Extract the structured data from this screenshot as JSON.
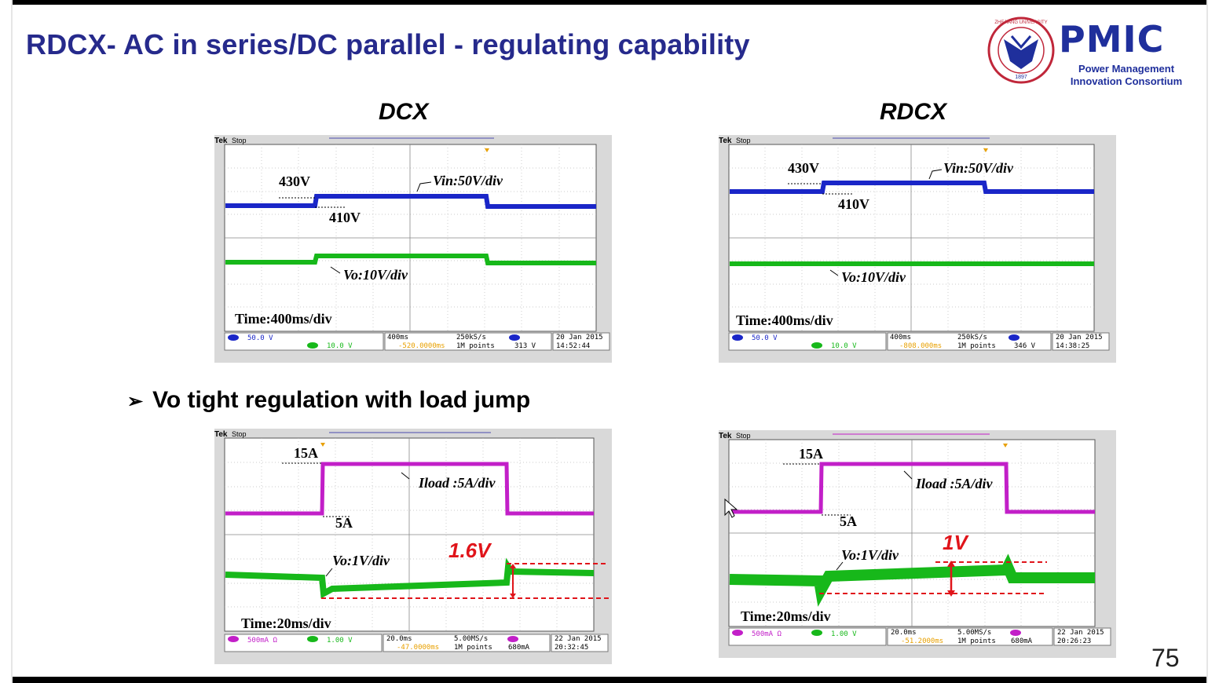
{
  "slide": {
    "title": "RDCX- AC in series/DC parallel - regulating capability",
    "page_number": "75",
    "bullet": "Vo tight regulation with load jump",
    "col_left": "DCX",
    "col_right": "RDCX"
  },
  "logo": {
    "acronym": "PMIC",
    "line1": "Power Management",
    "line2": "Innovation Consortium",
    "seal_text": "ZHEJIANG UNIVERSITY",
    "seal_year": "1897",
    "brand_color": "#1f2f9c",
    "seal_color": "#c0273a"
  },
  "colors": {
    "blue_trace": "#1a26c8",
    "green_trace": "#17b81a",
    "magenta_trace": "#c21fc8",
    "red_annot": "#e0141a",
    "title_color": "#262a8c"
  },
  "scopes": {
    "dcx_top": {
      "tek": "Tek",
      "stop": "Stop",
      "label_high": "430V",
      "label_low": "410V",
      "trace1_label": "Vin:50V/div",
      "trace2_label": "Vo:10V/div",
      "time_label": "Time:400ms/div",
      "ch1_scale": "50.0 V",
      "ch4_scale": "10.0 V",
      "timebase": "400ms",
      "sample_rate": "250kS/s",
      "trig_pos": "-520.0000ms",
      "record": "1M points",
      "trig_level": "313 V",
      "date": "20 Jan 2015",
      "time": "14:52:44"
    },
    "rdcx_top": {
      "tek": "Tek",
      "stop": "Stop",
      "label_high": "430V",
      "label_low": "410V",
      "trace1_label": "Vin:50V/div",
      "trace2_label": "Vo:10V/div",
      "time_label": "Time:400ms/div",
      "ch1_scale": "50.0 V",
      "ch4_scale": "10.0 V",
      "timebase": "400ms",
      "sample_rate": "250kS/s",
      "trig_pos": "-808.000ms",
      "record": "1M points",
      "trig_level": "346 V",
      "date": "20 Jan 2015",
      "time": "14:38:25"
    },
    "dcx_bottom": {
      "tek": "Tek",
      "stop": "Stop",
      "label_high": "15A",
      "label_low": "5A",
      "trace1_label": "Iload :5A/div",
      "trace2_label": "Vo:1V/div",
      "time_label": "Time:20ms/div",
      "delta_label": "1.6V",
      "ch3_scale": "500mA Ω",
      "ch4_scale": "1.00 V",
      "timebase": "20.0ms",
      "sample_rate": "5.00MS/s",
      "trig_pos": "-47.0000ms",
      "record": "1M points",
      "trig_level": "680mA",
      "date": "22 Jan 2015",
      "time": "20:32:45"
    },
    "rdcx_bottom": {
      "tek": "Tek",
      "stop": "Stop",
      "label_high": "15A",
      "label_low": "5A",
      "trace1_label": "Iload :5A/div",
      "trace2_label": "Vo:1V/div",
      "time_label": "Time:20ms/div",
      "delta_label": "1V",
      "ch3_scale": "500mA Ω",
      "ch4_scale": "1.00 V",
      "timebase": "20.0ms",
      "sample_rate": "5.00MS/s",
      "trig_pos": "-51.2000ms",
      "record": "1M points",
      "trig_level": "680mA",
      "date": "22 Jan 2015",
      "time": "20:26:23"
    }
  }
}
